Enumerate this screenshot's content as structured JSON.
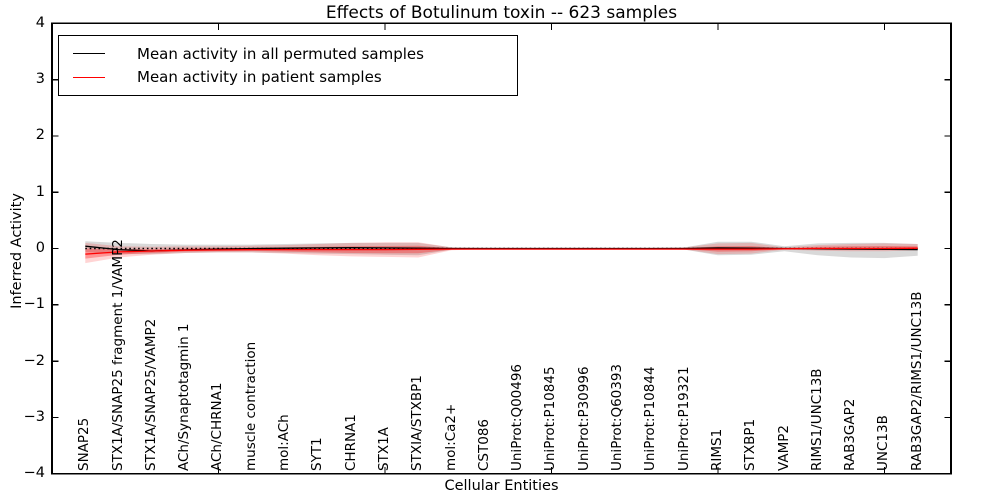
{
  "title": "Effects of Botulinum toxin -- 623 samples",
  "axes": {
    "xlabel": "Cellular Entities",
    "ylabel": "Inferred Activity"
  },
  "legend": {
    "items": [
      {
        "label": "Mean activity in all permuted samples",
        "color": "#000000"
      },
      {
        "label": "Mean activity in patient samples",
        "color": "#ff0000"
      }
    ]
  },
  "colors": {
    "permuted_line": "#000000",
    "patient_line": "#ff0000",
    "permuted_band": "#000000",
    "patient_band": "#ff0000",
    "axis": "#000000",
    "background": "#ffffff"
  },
  "chart_data": {
    "type": "line",
    "title": "Effects of Botulinum toxin -- 623 samples",
    "xlabel": "Cellular Entities",
    "ylabel": "Inferred Activity",
    "ylim": [
      -4,
      4
    ],
    "xlim": [
      0,
      27
    ],
    "grid": false,
    "legend_position": "upper left",
    "categories": [
      "SNAP25",
      "STX1A/SNAP25 fragment 1/VAMP2",
      "STX1A/SNAP25/VAMP2",
      "ACh/Synaptotagmin 1",
      "ACh/CHRNA1",
      "muscle contraction",
      "mol:ACh",
      "SYT1",
      "CHRNA1",
      "STX1A",
      "STXIA/STXBP1",
      "mol:Ca2+",
      "CST086",
      "UniProt:Q00496",
      "UniProt:P10845",
      "UniProt:P30996",
      "UniProt:Q60393",
      "UniProt:P10844",
      "UniProt:P19321",
      "RIMS1",
      "STXBP1",
      "VAMP2",
      "RIMS1/UNC13B",
      "RAB3GAP2",
      "UNC13B",
      "RAB3GAP2/RIMS1/UNC13B"
    ],
    "x_index_start": 1,
    "x_unlabeled_tick_positions": [
      5,
      10,
      15,
      20,
      25
    ],
    "y_ticks": [
      {
        "value": 4,
        "label": "4"
      },
      {
        "value": 3,
        "label": "3"
      },
      {
        "value": 2,
        "label": "2"
      },
      {
        "value": 1,
        "label": "1"
      },
      {
        "value": 0,
        "label": "0"
      },
      {
        "value": -1,
        "label": "−1"
      },
      {
        "value": -2,
        "label": "−2"
      },
      {
        "value": -3,
        "label": "−3"
      },
      {
        "value": -4,
        "label": "−4"
      }
    ],
    "zero_reference": {
      "value": 0,
      "style": "dotted",
      "color": "#000000"
    },
    "series": [
      {
        "name": "Mean activity in all permuted samples",
        "color": "#000000",
        "style": "solid",
        "values": [
          0.04,
          -0.02,
          -0.045,
          -0.025,
          -0.01,
          0.0,
          0.005,
          0.01,
          0.015,
          0.01,
          0.005,
          0.0,
          0.0,
          0.0,
          0.0,
          0.0,
          0.0,
          0.0,
          0.0,
          0.01,
          0.005,
          0.0,
          -0.005,
          -0.01,
          -0.015,
          -0.02
        ]
      },
      {
        "name": "Mean activity in patient samples",
        "color": "#ff0000",
        "style": "solid",
        "values": [
          -0.1,
          -0.06,
          -0.045,
          -0.03,
          -0.025,
          -0.02,
          -0.02,
          -0.02,
          -0.02,
          -0.02,
          -0.015,
          -0.01,
          -0.01,
          -0.01,
          -0.01,
          -0.01,
          -0.01,
          -0.01,
          -0.01,
          -0.01,
          -0.01,
          -0.005,
          0.0,
          0.0,
          0.0,
          0.005
        ]
      }
    ],
    "bands": [
      {
        "name": "permuted-samples-range",
        "color": "#000000",
        "opacity": 0.15,
        "upper": [
          0.13,
          0.1,
          0.08,
          0.07,
          0.07,
          0.07,
          0.08,
          0.09,
          0.1,
          0.1,
          0.1,
          0.02,
          0.01,
          0.01,
          0.01,
          0.01,
          0.01,
          0.01,
          0.02,
          0.12,
          0.12,
          0.04,
          0.09,
          0.1,
          0.1,
          0.08
        ],
        "lower": [
          -0.06,
          -0.1,
          -0.1,
          -0.08,
          -0.07,
          -0.07,
          -0.08,
          -0.09,
          -0.1,
          -0.11,
          -0.12,
          -0.02,
          -0.01,
          -0.01,
          -0.01,
          -0.01,
          -0.01,
          -0.01,
          -0.02,
          -0.12,
          -0.11,
          -0.05,
          -0.12,
          -0.16,
          -0.17,
          -0.13
        ]
      },
      {
        "name": "patient-samples-range-outer",
        "color": "#ff0000",
        "opacity": 0.17,
        "upper": [
          0.1,
          0.04,
          0.03,
          0.04,
          0.04,
          0.05,
          0.06,
          0.08,
          0.1,
          0.11,
          0.11,
          0.02,
          0.01,
          0.01,
          0.01,
          0.01,
          0.01,
          0.01,
          0.02,
          0.09,
          0.1,
          0.02,
          0.06,
          0.08,
          0.09,
          0.08
        ],
        "lower": [
          -0.26,
          -0.16,
          -0.11,
          -0.08,
          -0.07,
          -0.07,
          -0.09,
          -0.12,
          -0.14,
          -0.15,
          -0.16,
          -0.03,
          -0.01,
          -0.01,
          -0.01,
          -0.01,
          -0.01,
          -0.01,
          -0.02,
          -0.1,
          -0.09,
          -0.02,
          -0.04,
          -0.05,
          -0.05,
          -0.03
        ]
      },
      {
        "name": "patient-samples-range-inner",
        "color": "#ff0000",
        "opacity": 0.3,
        "upper": [
          0.0,
          -0.01,
          -0.01,
          0.0,
          0.01,
          0.01,
          0.02,
          0.03,
          0.04,
          0.045,
          0.05,
          0.005,
          0.0,
          0.0,
          0.0,
          0.0,
          0.0,
          0.0,
          0.005,
          0.04,
          0.045,
          0.005,
          0.03,
          0.04,
          0.045,
          0.04
        ],
        "lower": [
          -0.18,
          -0.11,
          -0.08,
          -0.055,
          -0.05,
          -0.045,
          -0.055,
          -0.07,
          -0.08,
          -0.085,
          -0.085,
          -0.02,
          -0.005,
          -0.005,
          -0.005,
          -0.005,
          -0.005,
          -0.005,
          -0.01,
          -0.055,
          -0.05,
          -0.01,
          -0.02,
          -0.025,
          -0.02,
          -0.01
        ]
      }
    ]
  }
}
